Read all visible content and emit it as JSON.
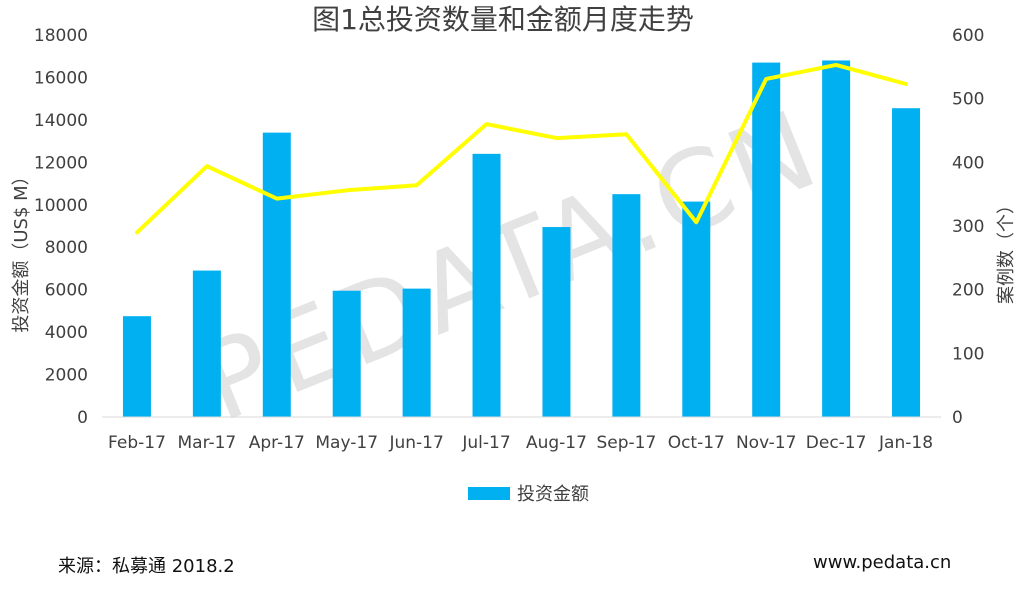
{
  "chart_data": {
    "type": "bar",
    "title": "图1总投资数量和金额月度走势",
    "categories": [
      "Feb-17",
      "Mar-17",
      "Apr-17",
      "May-17",
      "Jun-17",
      "Jul-17",
      "Aug-17",
      "Sep-17",
      "Oct-17",
      "Nov-17",
      "Dec-17",
      "Jan-18"
    ],
    "series": [
      {
        "name": "投资金额",
        "type": "bar",
        "axis": "left",
        "color": "#00b0f0",
        "values": [
          4750,
          6900,
          13400,
          5950,
          6050,
          12400,
          8950,
          10500,
          10150,
          16700,
          16800,
          14550
        ]
      },
      {
        "type": "line",
        "axis": "right",
        "color": "#ffff00",
        "values": [
          290,
          394,
          343,
          356,
          364,
          460,
          438,
          444,
          306,
          531,
          553,
          523
        ]
      }
    ],
    "ylabel_left": "投资金额（US$ M）",
    "ylabel_right": "案例数（个）",
    "ylim_left": [
      0,
      18000
    ],
    "ylim_right": [
      0,
      600
    ],
    "yticks_left": [
      "0",
      "2000",
      "4000",
      "6000",
      "8000",
      "10000",
      "12000",
      "14000",
      "16000",
      "18000"
    ],
    "yticks_right": [
      "0",
      "100",
      "200",
      "300",
      "400",
      "500",
      "600"
    ],
    "grid": false,
    "legend": {
      "position": "bottom",
      "entries": [
        "投资金额"
      ]
    },
    "watermark": "PEDATA.CN"
  },
  "footer": {
    "source": "来源：私募通  2018.2",
    "website": "www.pedata.cn"
  }
}
